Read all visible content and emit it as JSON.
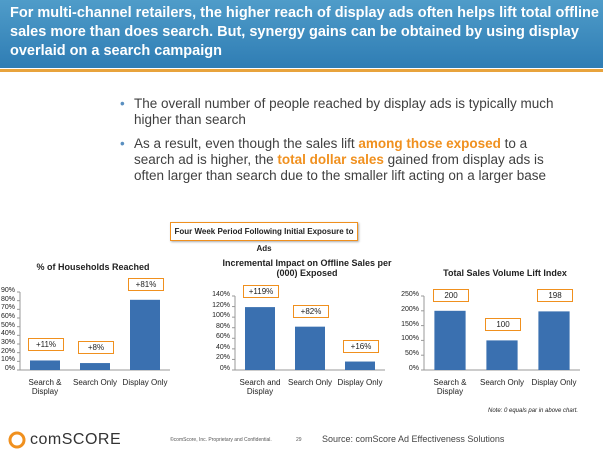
{
  "header": {
    "title": "For multi-channel retailers, the higher reach of display ads often helps lift total offline sales more than does search. But, synergy gains can be obtained by using display overlaid on a search campaign"
  },
  "bullets": [
    [
      {
        "text": "The overall number of people reached by display ads is typically much higher than search"
      }
    ],
    [
      {
        "text": "As a result, even though the sales lift "
      },
      {
        "text": "among those exposed",
        "highlight": true
      },
      {
        "text": " to a search ad is higher, the "
      },
      {
        "text": "total dollar sales",
        "highlight": true
      },
      {
        "text": " gained from display ads is often larger than search due to the smaller lift acting on a larger base"
      }
    ]
  ],
  "period_label": "Four Week Period Following Initial Exposure to Ads",
  "chart_data": [
    {
      "type": "bar",
      "title": "% of Households Reached",
      "categories": [
        "Search & Display",
        "Search Only",
        "Display Only"
      ],
      "values": [
        11,
        8,
        81
      ],
      "value_labels": [
        "+11%",
        "+8%",
        "+81%"
      ],
      "color": "#3a70b0",
      "ylim": [
        0,
        90
      ],
      "yticks": [
        {
          "value": 0,
          "label": "0%"
        },
        {
          "value": 10,
          "label": "10%"
        },
        {
          "value": 20,
          "label": "20%"
        },
        {
          "value": 30,
          "label": "30%"
        },
        {
          "value": 40,
          "label": "40%"
        },
        {
          "value": 50,
          "label": "50%"
        },
        {
          "value": 60,
          "label": "60%"
        },
        {
          "value": 70,
          "label": "70%"
        },
        {
          "value": 80,
          "label": "80%"
        },
        {
          "value": 90,
          "label": "90%"
        }
      ]
    },
    {
      "type": "bar",
      "title": "Incremental Impact on Offline Sales per (000) Exposed",
      "categories": [
        "Search and Display",
        "Search Only",
        "Display Only"
      ],
      "values": [
        119,
        82,
        16
      ],
      "value_labels": [
        "+119%",
        "+82%",
        "+16%"
      ],
      "color": "#3a70b0",
      "ylim": [
        0,
        140
      ],
      "yticks": [
        {
          "value": 0,
          "label": "0%"
        },
        {
          "value": 20,
          "label": "20%"
        },
        {
          "value": 40,
          "label": "40%"
        },
        {
          "value": 60,
          "label": "60%"
        },
        {
          "value": 80,
          "label": "80%"
        },
        {
          "value": 100,
          "label": "100%"
        },
        {
          "value": 120,
          "label": "120%"
        },
        {
          "value": 140,
          "label": "140%"
        }
      ]
    },
    {
      "type": "bar",
      "title": "Total Sales Volume Lift Index",
      "categories": [
        "Search & Display",
        "Search Only",
        "Display Only"
      ],
      "values": [
        200,
        100,
        198
      ],
      "color": "#3a70b0",
      "ylim": [
        0,
        250
      ],
      "yticks": [
        {
          "value": 0,
          "label": "0%"
        },
        {
          "value": 50,
          "label": "50%"
        },
        {
          "value": 100,
          "label": "100%"
        },
        {
          "value": 150,
          "label": "150%"
        },
        {
          "value": 200,
          "label": "200%"
        },
        {
          "value": 250,
          "label": "250%"
        }
      ]
    }
  ],
  "note": "Note: 0 equals par in above chart.",
  "footer": {
    "logo": "comSCORE",
    "copyright": "©comScore, Inc. Proprietary and Confidential.",
    "page": "29",
    "source": "Source:  comScore Ad Effectiveness Solutions"
  }
}
